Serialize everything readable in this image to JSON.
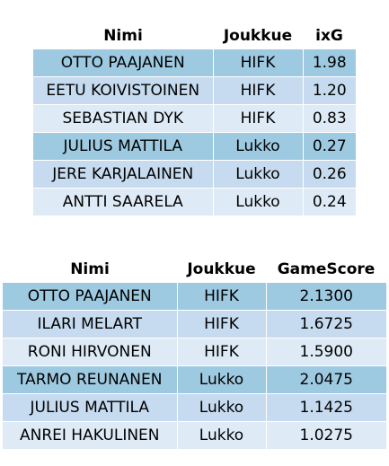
{
  "xg_table": {
    "headers": [
      "Nimi",
      "Joukkue",
      "ixG"
    ],
    "rows": [
      [
        "OTTO PAAJANEN",
        "HIFK",
        "1.98"
      ],
      [
        "EETU KOIVISTOINEN",
        "HIFK",
        "1.20"
      ],
      [
        "SEBASTIAN DYK",
        "HIFK",
        "0.83"
      ],
      [
        "JULIUS MATTILA",
        "Lukko",
        "0.27"
      ],
      [
        "JERE KARJALAINEN",
        "Lukko",
        "0.26"
      ],
      [
        "ANTTI SAARELA",
        "Lukko",
        "0.24"
      ]
    ]
  },
  "gamescore_table": {
    "headers": [
      "Nimi",
      "Joukkue",
      "GameScore"
    ],
    "rows": [
      [
        "OTTO PAAJANEN",
        "HIFK",
        "2.1300"
      ],
      [
        "ILARI MELART",
        "HIFK",
        "1.6725"
      ],
      [
        "RONI HIRVONEN",
        "HIFK",
        "1.5900"
      ],
      [
        "TARMO REUNANEN",
        "Lukko",
        "2.0475"
      ],
      [
        "JULIUS MATTILA",
        "Lukko",
        "1.1425"
      ],
      [
        "ANREI HAKULINEN",
        "Lukko",
        "1.0275"
      ]
    ]
  },
  "colors": {
    "row_shade_dark": "#9ecae1",
    "row_shade_mid": "#c6dbef",
    "row_shade_light": "#deebf7"
  }
}
